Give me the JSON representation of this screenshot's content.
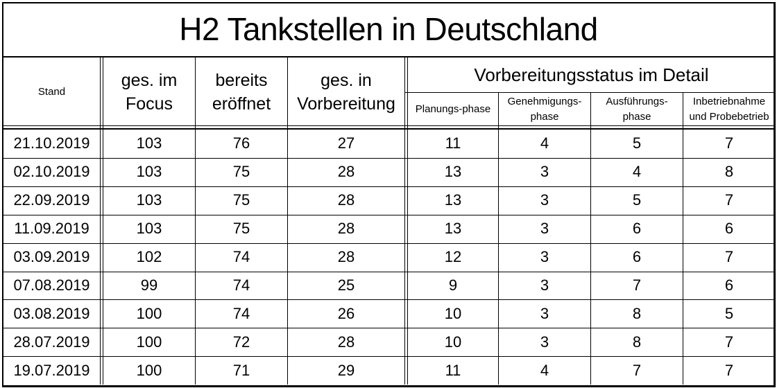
{
  "title": "H2 Tankstellen in Deutschland",
  "headers": {
    "stand": "Stand",
    "ges_im_focus": [
      "ges. im",
      "Focus"
    ],
    "bereits_eroeffnet": [
      "bereits",
      "eröffnet"
    ],
    "ges_in_vorbereitung": [
      "ges. in",
      "Vorbereitung"
    ],
    "group": "Vorbereitungsstatus im Detail",
    "planung": [
      "Planungs-phase"
    ],
    "genehmigung": [
      "Genehmigungs-",
      "phase"
    ],
    "ausfuehrung": [
      "Ausführungs-",
      "phase"
    ],
    "inbetriebnahme": [
      "Inbetriebnahme",
      "und Probebetrieb"
    ]
  },
  "rows": [
    {
      "stand": "21.10.2019",
      "focus": "103",
      "eroeffnet": "76",
      "vorbereitung": "27",
      "planung": "11",
      "genehmigung": "4",
      "ausfuehrung": "5",
      "inbetriebnahme": "7"
    },
    {
      "stand": "02.10.2019",
      "focus": "103",
      "eroeffnet": "75",
      "vorbereitung": "28",
      "planung": "13",
      "genehmigung": "3",
      "ausfuehrung": "4",
      "inbetriebnahme": "8"
    },
    {
      "stand": "22.09.2019",
      "focus": "103",
      "eroeffnet": "75",
      "vorbereitung": "28",
      "planung": "13",
      "genehmigung": "3",
      "ausfuehrung": "5",
      "inbetriebnahme": "7"
    },
    {
      "stand": "11.09.2019",
      "focus": "103",
      "eroeffnet": "75",
      "vorbereitung": "28",
      "planung": "13",
      "genehmigung": "3",
      "ausfuehrung": "6",
      "inbetriebnahme": "6"
    },
    {
      "stand": "03.09.2019",
      "focus": "102",
      "eroeffnet": "74",
      "vorbereitung": "28",
      "planung": "12",
      "genehmigung": "3",
      "ausfuehrung": "6",
      "inbetriebnahme": "7"
    },
    {
      "stand": "07.08.2019",
      "focus": "99",
      "eroeffnet": "74",
      "vorbereitung": "25",
      "planung": "9",
      "genehmigung": "3",
      "ausfuehrung": "7",
      "inbetriebnahme": "6"
    },
    {
      "stand": "03.08.2019",
      "focus": "100",
      "eroeffnet": "74",
      "vorbereitung": "26",
      "planung": "10",
      "genehmigung": "3",
      "ausfuehrung": "8",
      "inbetriebnahme": "5"
    },
    {
      "stand": "28.07.2019",
      "focus": "100",
      "eroeffnet": "72",
      "vorbereitung": "28",
      "planung": "10",
      "genehmigung": "3",
      "ausfuehrung": "8",
      "inbetriebnahme": "7"
    },
    {
      "stand": "19.07.2019",
      "focus": "100",
      "eroeffnet": "71",
      "vorbereitung": "29",
      "planung": "11",
      "genehmigung": "4",
      "ausfuehrung": "7",
      "inbetriebnahme": "7"
    }
  ]
}
